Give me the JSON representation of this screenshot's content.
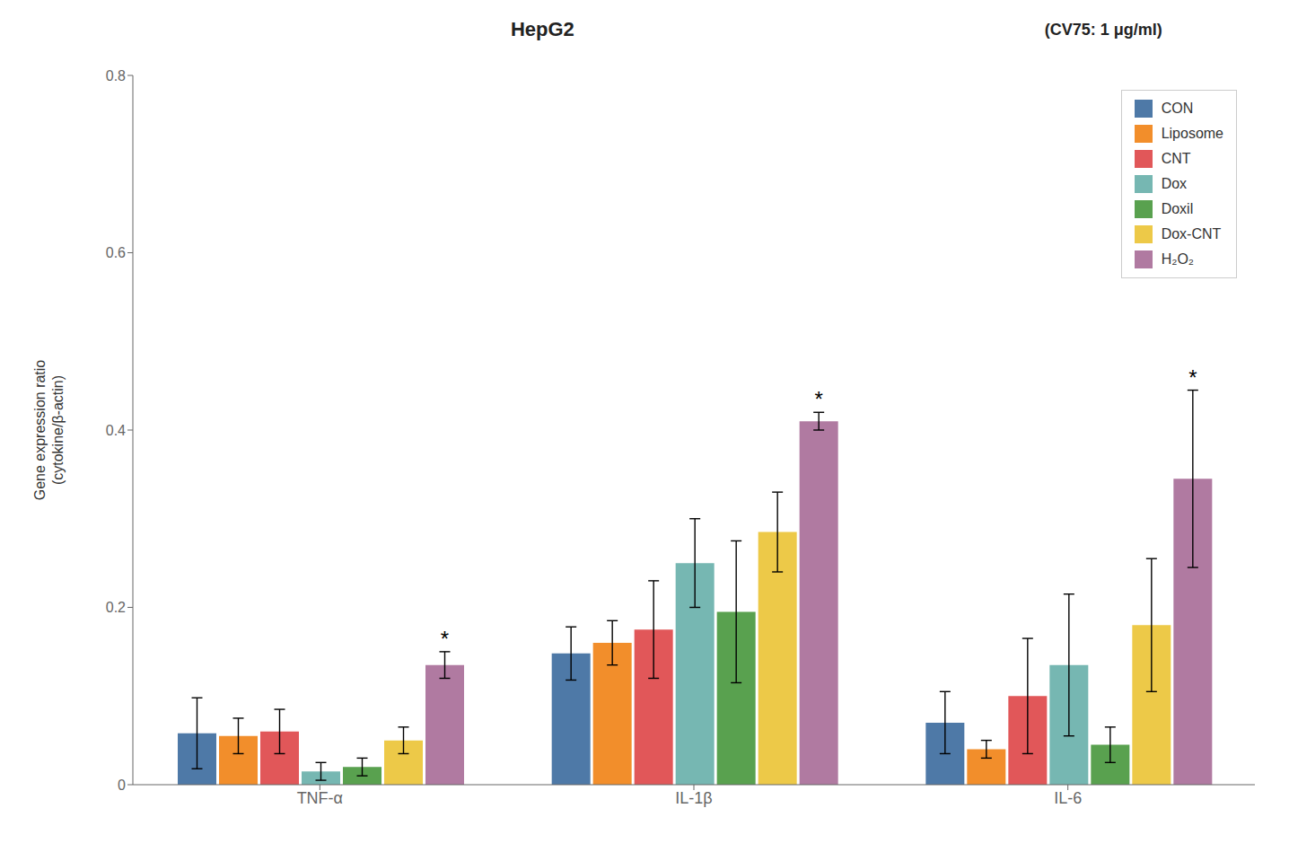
{
  "chart_data": {
    "type": "bar",
    "title": "HepG2",
    "subtitle": "(CV75: 1 μg/ml)",
    "ylabel": "Gene expression ratio\n(cytokine/β-actin)",
    "categories": [
      "TNF-α",
      "IL-1β",
      "IL-6"
    ],
    "series": [
      {
        "name": "CON",
        "color": "#4e79a7",
        "values": [
          0.058,
          0.148,
          0.07
        ],
        "errors": [
          0.04,
          0.03,
          0.035
        ]
      },
      {
        "name": "Liposome",
        "color": "#f28e2b",
        "values": [
          0.055,
          0.16,
          0.04
        ],
        "errors": [
          0.02,
          0.025,
          0.01
        ]
      },
      {
        "name": "CNT",
        "color": "#e15759",
        "values": [
          0.06,
          0.175,
          0.1
        ],
        "errors": [
          0.025,
          0.055,
          0.065
        ]
      },
      {
        "name": "Dox",
        "color": "#76b7b2",
        "values": [
          0.015,
          0.25,
          0.135
        ],
        "errors": [
          0.01,
          0.05,
          0.08
        ]
      },
      {
        "name": "Doxil",
        "color": "#59a14f",
        "values": [
          0.02,
          0.195,
          0.045
        ],
        "errors": [
          0.01,
          0.08,
          0.02
        ]
      },
      {
        "name": "Dox-CNT",
        "color": "#edc948",
        "values": [
          0.05,
          0.285,
          0.18
        ],
        "errors": [
          0.015,
          0.045,
          0.075
        ]
      },
      {
        "name": "H₂O₂",
        "color": "#b07aa1",
        "values": [
          0.135,
          0.41,
          0.345
        ],
        "errors": [
          0.015,
          0.01,
          0.1
        ]
      }
    ],
    "ylim": [
      0,
      0.8
    ],
    "yticks": [
      0,
      0.2,
      0.4,
      0.6,
      0.8
    ],
    "grid": false,
    "legend": "upper right",
    "annotations": [
      {
        "text": "*",
        "series": "H₂O₂",
        "category": "TNF-α"
      },
      {
        "text": "*",
        "series": "H₂O₂",
        "category": "IL-1β"
      },
      {
        "text": "*",
        "series": "H₂O₂",
        "category": "IL-6"
      }
    ]
  }
}
